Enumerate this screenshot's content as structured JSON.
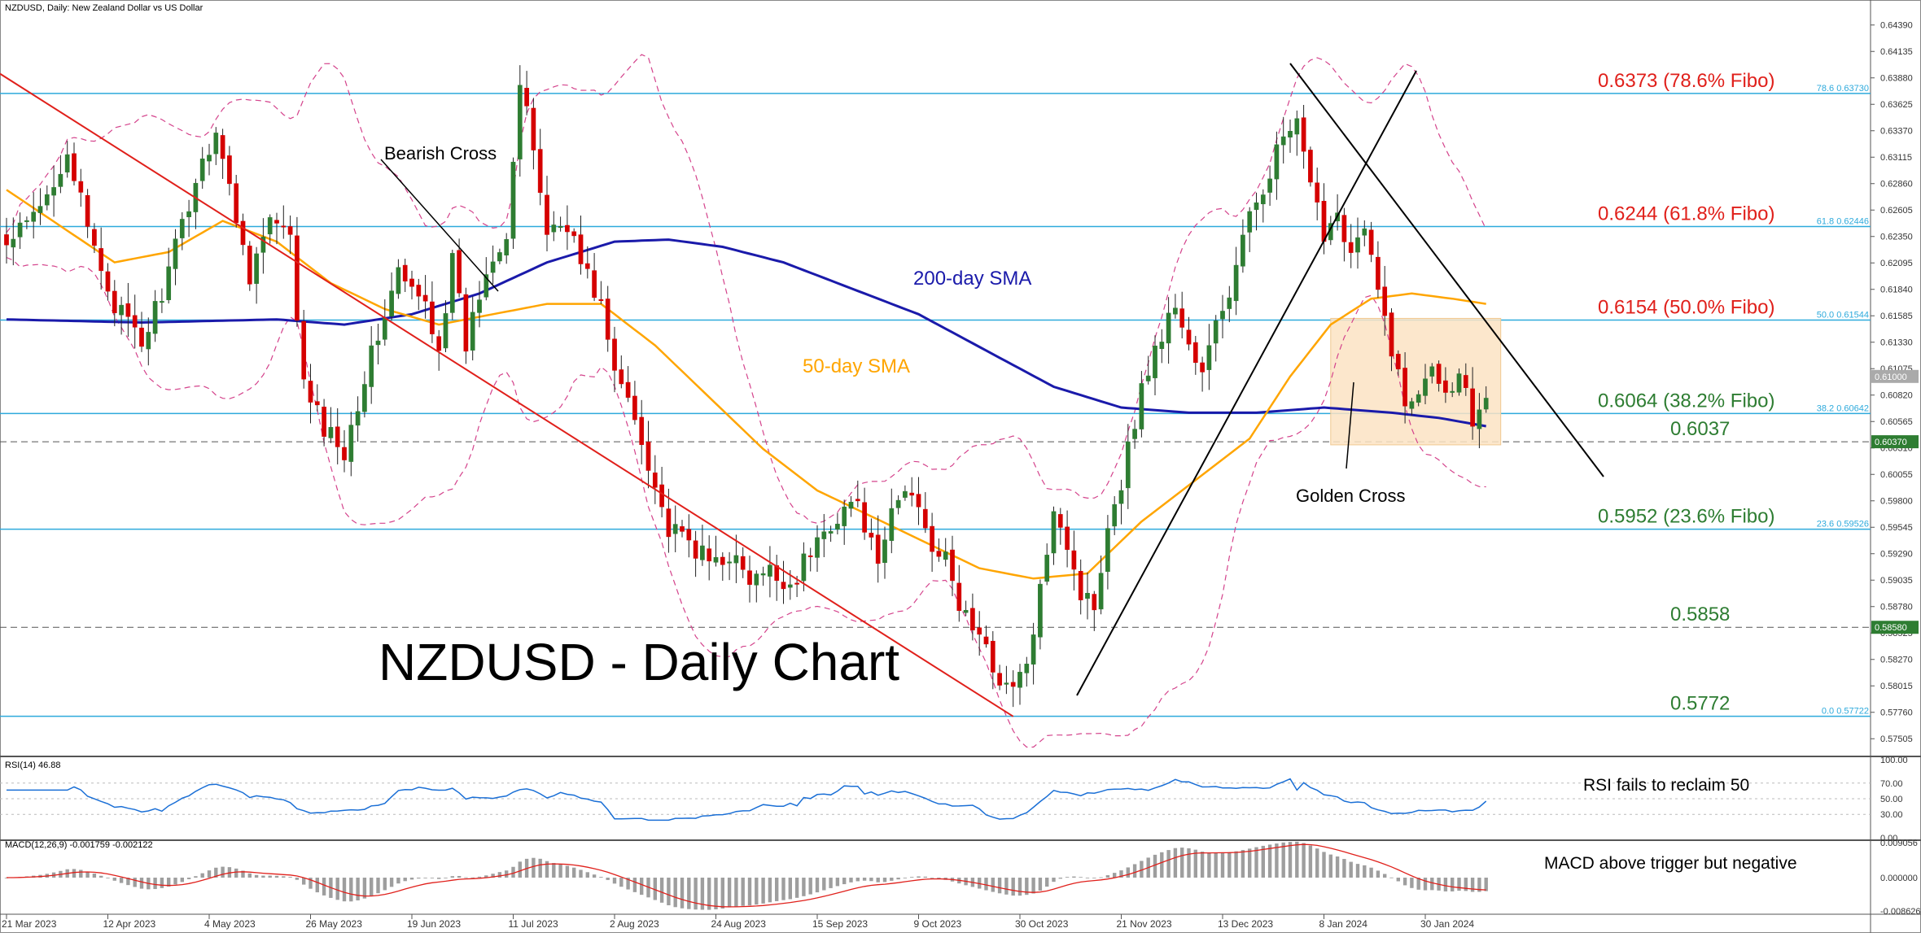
{
  "header": {
    "symbol_line": "NZDUSD, Daily:  New Zealand Dollar vs US Dollar"
  },
  "title": "NZDUSD - Daily Chart",
  "colors": {
    "up": "#2e7d32",
    "down": "#d50000",
    "sma50": "#ffa500",
    "sma200": "#1a1aaa",
    "bollinger": "#d4438c",
    "fibo_line": "#2eaadc",
    "fibo_text_red": "#e0201b",
    "fibo_text_green": "#2e7d32",
    "downtrend": "#e0201b",
    "trendline": "#000000",
    "range_box": "#fbe3c3",
    "rsi": "#1a6fd6",
    "macd_hist": "#9e9e9e",
    "macd_signal": "#e0201b"
  },
  "main_axis": {
    "ylim": [
      0.5735,
      0.6449
    ],
    "ticks": [
      "0.64390",
      "0.64135",
      "0.63880",
      "0.63625",
      "0.63370",
      "0.63115",
      "0.62860",
      "0.62605",
      "0.62350",
      "0.62095",
      "0.61840",
      "0.61585",
      "0.61330",
      "0.61075",
      "0.60820",
      "0.60565",
      "0.60310",
      "0.60055",
      "0.59800",
      "0.59545",
      "0.59290",
      "0.59035",
      "0.58780",
      "0.58525",
      "0.58270",
      "0.58015",
      "0.57760",
      "0.57505"
    ],
    "price_tags": [
      {
        "label": "0.61000",
        "value": 0.61,
        "color": "#aaaaaa"
      },
      {
        "label": "0.60370",
        "value": 0.6037,
        "color": "#2e7d32"
      },
      {
        "label": "0.58580",
        "value": 0.5858,
        "color": "#2e7d32"
      }
    ]
  },
  "x_axis": {
    "labels": [
      "21 Mar 2023",
      "12 Apr 2023",
      "4 May 2023",
      "26 May 2023",
      "19 Jun 2023",
      "11 Jul 2023",
      "2 Aug 2023",
      "24 Aug 2023",
      "15 Sep 2023",
      "9 Oct 2023",
      "30 Oct 2023",
      "21 Nov 2023",
      "13 Dec 2023",
      "8 Jan 2024",
      "30 Jan 2024"
    ],
    "label_bars": [
      0,
      15,
      30,
      45,
      60,
      75,
      90,
      105,
      120,
      135,
      150,
      165,
      180,
      195,
      210
    ]
  },
  "fibo_levels": [
    {
      "value": 0.6373,
      "label": "0.6373 (78.6% Fibo)",
      "tag": "78.6  0.63730",
      "color": "red",
      "dashed": false
    },
    {
      "value": 0.62446,
      "label": "0.6244 (61.8% Fibo)",
      "tag": "61.8  0.62446",
      "color": "red",
      "dashed": false
    },
    {
      "value": 0.61544,
      "label": "0.6154 (50.0% Fibo)",
      "tag": "50.0  0.61544",
      "color": "red",
      "dashed": false
    },
    {
      "value": 0.60642,
      "label": "0.6064 (38.2% Fibo)",
      "tag": "38.2  0.60642",
      "color": "green",
      "dashed": false
    },
    {
      "value": 0.6037,
      "label": "0.6037",
      "tag": "",
      "color": "green",
      "dashed": true
    },
    {
      "value": 0.59526,
      "label": "0.5952 (23.6% Fibo)",
      "tag": "23.6  0.59526",
      "color": "green",
      "dashed": false
    },
    {
      "value": 0.5858,
      "label": "0.5858",
      "tag": "",
      "color": "green",
      "dashed": true
    },
    {
      "value": 0.57722,
      "label": "0.5772",
      "tag": "0.0  0.57722",
      "color": "green",
      "dashed": false
    }
  ],
  "annotations": {
    "bearish_cross": "Bearish Cross",
    "golden_cross": "Golden Cross",
    "sma200_label": "200-day SMA",
    "sma50_label": "50-day SMA"
  },
  "rsi": {
    "header": "RSI(14) 46.88",
    "note": "RSI fails to reclaim 50",
    "ticks": [
      "100.00",
      "70.00",
      "50.00",
      "30.00",
      "0.00"
    ],
    "last": 46.88
  },
  "macd": {
    "header": "MACD(12,26,9) -0.001759 -0.002122",
    "note": "MACD above trigger but negative",
    "ticks": [
      "0.009056",
      "0.000000",
      "-0.008626"
    ]
  },
  "chart_data": {
    "type": "candlestick",
    "bars": 220,
    "close_keypoints": [
      [
        0,
        0.6225
      ],
      [
        5,
        0.626
      ],
      [
        9,
        0.632
      ],
      [
        12,
        0.624
      ],
      [
        16,
        0.617
      ],
      [
        20,
        0.613
      ],
      [
        24,
        0.62
      ],
      [
        28,
        0.629
      ],
      [
        31,
        0.634
      ],
      [
        33,
        0.628
      ],
      [
        36,
        0.62
      ],
      [
        39,
        0.625
      ],
      [
        42,
        0.623
      ],
      [
        44,
        0.609
      ],
      [
        47,
        0.605
      ],
      [
        50,
        0.603
      ],
      [
        53,
        0.61
      ],
      [
        55,
        0.614
      ],
      [
        58,
        0.62
      ],
      [
        60,
        0.618
      ],
      [
        62,
        0.617
      ],
      [
        64,
        0.613
      ],
      [
        66,
        0.621
      ],
      [
        68,
        0.613
      ],
      [
        70,
        0.618
      ],
      [
        72,
        0.622
      ],
      [
        74,
        0.624
      ],
      [
        76,
        0.638
      ],
      [
        78,
        0.632
      ],
      [
        80,
        0.624
      ],
      [
        83,
        0.625
      ],
      [
        85,
        0.621
      ],
      [
        88,
        0.617
      ],
      [
        90,
        0.61
      ],
      [
        92,
        0.608
      ],
      [
        95,
        0.602
      ],
      [
        98,
        0.595
      ],
      [
        101,
        0.594
      ],
      [
        104,
        0.592
      ],
      [
        107,
        0.593
      ],
      [
        110,
        0.59
      ],
      [
        113,
        0.591
      ],
      [
        116,
        0.59
      ],
      [
        119,
        0.593
      ],
      [
        122,
        0.596
      ],
      [
        125,
        0.598
      ],
      [
        127,
        0.596
      ],
      [
        129,
        0.591
      ],
      [
        131,
        0.597
      ],
      [
        133,
        0.599
      ],
      [
        135,
        0.598
      ],
      [
        137,
        0.594
      ],
      [
        139,
        0.592
      ],
      [
        141,
        0.588
      ],
      [
        143,
        0.586
      ],
      [
        146,
        0.582
      ],
      [
        149,
        0.5795
      ],
      [
        152,
        0.5845
      ],
      [
        155,
        0.598
      ],
      [
        157,
        0.594
      ],
      [
        159,
        0.589
      ],
      [
        161,
        0.588
      ],
      [
        163,
        0.596
      ],
      [
        165,
        0.6
      ],
      [
        167,
        0.606
      ],
      [
        169,
        0.611
      ],
      [
        171,
        0.614
      ],
      [
        173,
        0.617
      ],
      [
        175,
        0.613
      ],
      [
        177,
        0.61
      ],
      [
        179,
        0.615
      ],
      [
        181,
        0.618
      ],
      [
        183,
        0.623
      ],
      [
        185,
        0.627
      ],
      [
        187,
        0.63
      ],
      [
        189,
        0.633
      ],
      [
        191,
        0.634
      ],
      [
        193,
        0.628
      ],
      [
        195,
        0.624
      ],
      [
        197,
        0.626
      ],
      [
        199,
        0.622
      ],
      [
        201,
        0.624
      ],
      [
        203,
        0.618
      ],
      [
        205,
        0.613
      ],
      [
        207,
        0.607
      ],
      [
        209,
        0.609
      ],
      [
        211,
        0.612
      ],
      [
        213,
        0.608
      ],
      [
        215,
        0.611
      ],
      [
        217,
        0.606
      ],
      [
        219,
        0.609
      ]
    ],
    "sma50_keypoints": [
      [
        0,
        0.628
      ],
      [
        8,
        0.6245
      ],
      [
        16,
        0.621
      ],
      [
        24,
        0.622
      ],
      [
        32,
        0.625
      ],
      [
        40,
        0.623
      ],
      [
        48,
        0.619
      ],
      [
        56,
        0.6165
      ],
      [
        64,
        0.615
      ],
      [
        72,
        0.616
      ],
      [
        80,
        0.617
      ],
      [
        88,
        0.617
      ],
      [
        96,
        0.613
      ],
      [
        104,
        0.608
      ],
      [
        112,
        0.603
      ],
      [
        120,
        0.599
      ],
      [
        128,
        0.5965
      ],
      [
        136,
        0.594
      ],
      [
        144,
        0.5915
      ],
      [
        152,
        0.5905
      ],
      [
        160,
        0.591
      ],
      [
        168,
        0.596
      ],
      [
        176,
        0.6
      ],
      [
        184,
        0.604
      ],
      [
        190,
        0.61
      ],
      [
        196,
        0.615
      ],
      [
        202,
        0.6175
      ],
      [
        208,
        0.618
      ],
      [
        214,
        0.6175
      ],
      [
        219,
        0.617
      ]
    ],
    "sma200_keypoints": [
      [
        0,
        0.6155
      ],
      [
        20,
        0.6152
      ],
      [
        40,
        0.6155
      ],
      [
        50,
        0.615
      ],
      [
        60,
        0.616
      ],
      [
        70,
        0.618
      ],
      [
        80,
        0.621
      ],
      [
        90,
        0.623
      ],
      [
        98,
        0.6232
      ],
      [
        106,
        0.6225
      ],
      [
        115,
        0.621
      ],
      [
        125,
        0.6185
      ],
      [
        135,
        0.616
      ],
      [
        145,
        0.6125
      ],
      [
        155,
        0.609
      ],
      [
        165,
        0.607
      ],
      [
        175,
        0.6065
      ],
      [
        185,
        0.6065
      ],
      [
        195,
        0.607
      ],
      [
        205,
        0.6065
      ],
      [
        212,
        0.606
      ],
      [
        219,
        0.6052
      ]
    ],
    "sma_labels": [
      "200-day SMA",
      "50-day SMA"
    ]
  }
}
